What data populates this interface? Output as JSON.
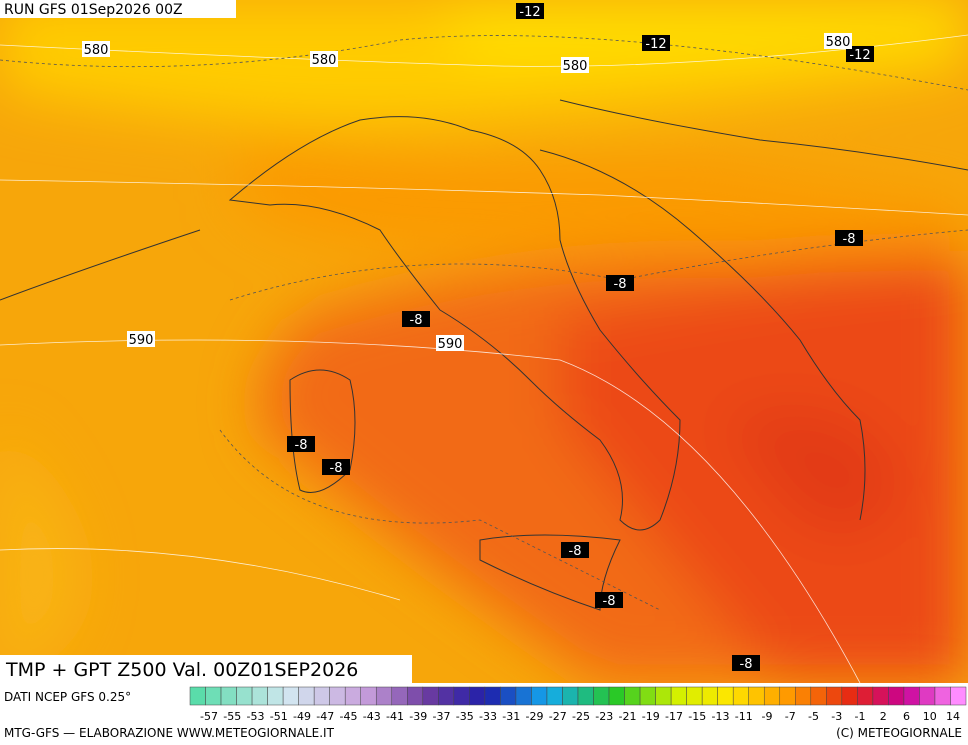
{
  "header": {
    "run": "RUN GFS 01Sep2026 00Z"
  },
  "map": {
    "contour_labels": [
      "-12",
      "-12",
      "-12",
      "580",
      "580",
      "580",
      "580",
      "-8",
      "-8",
      "-8",
      "590",
      "590",
      "-8",
      "-8",
      "-8",
      "-8",
      "-8"
    ]
  },
  "footer": {
    "product": "TMP + GPT Z500 Val. 00Z01SEP2026",
    "source": "DATI NCEP GFS 0.25°",
    "credits": "MTG-GFS — ELABORAZIONE WWW.METEOGIORNALE.IT",
    "copyright": "(C) METEOGIORNALE"
  },
  "legend": {
    "labels": [
      -57,
      -55,
      -53,
      -51,
      -49,
      -47,
      -45,
      -43,
      -41,
      -39,
      -37,
      -35,
      -33,
      -31,
      -29,
      -27,
      -25,
      -23,
      -21,
      -19,
      -17,
      -15,
      -13,
      -11,
      -9,
      -7,
      -5,
      -3,
      -1,
      2,
      6,
      10,
      14
    ]
  }
}
